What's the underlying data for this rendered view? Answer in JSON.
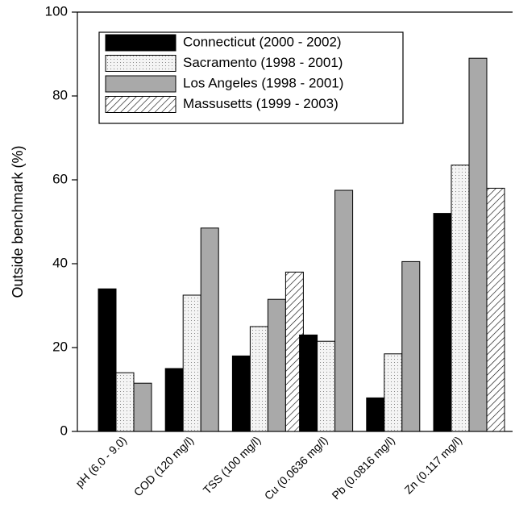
{
  "chart_data": {
    "type": "bar",
    "y_label": "Outside benchmark (%)",
    "categories": [
      "pH (6.0 - 9.0)",
      "COD (120 mg/l)",
      "TSS (100 mg/l)",
      "Cu (0.0636 mg/l)",
      "Pb (0.0816 mg/l)",
      "Zn (0.117 mg/l)"
    ],
    "series": [
      {
        "name": "Connecticut (2000 - 2002)",
        "color": "#000000",
        "pattern": "solid",
        "values": [
          34,
          15,
          18,
          23,
          8,
          52
        ]
      },
      {
        "name": "Sacramento (1998 - 2001)",
        "color": "#f2f2f2",
        "pattern": "dots",
        "values": [
          14,
          32.5,
          25,
          21.5,
          18.5,
          63.5
        ]
      },
      {
        "name": "Los Angeles (1998 - 2001)",
        "color": "#a9a9a9",
        "pattern": "solid",
        "values": [
          11.5,
          48.5,
          31.5,
          57.5,
          40.5,
          89
        ]
      },
      {
        "name": "Massusetts (1999 - 2003)",
        "color": "#ffffff",
        "pattern": "hatch",
        "values": [
          null,
          null,
          38,
          null,
          null,
          58
        ]
      }
    ],
    "ylim": [
      0,
      100
    ],
    "yticks": [
      0,
      20,
      40,
      60,
      80,
      100
    ],
    "legend": "upper left"
  }
}
